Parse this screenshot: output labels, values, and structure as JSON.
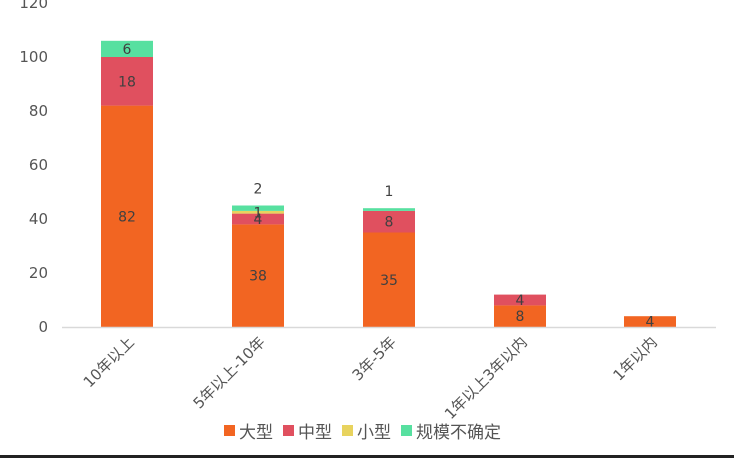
{
  "chart_data": {
    "type": "bar",
    "stacked": true,
    "categories": [
      "10年以上",
      "5年以上-10年",
      "3年-5年",
      "1年以上3年以内",
      "1年以内"
    ],
    "series": [
      {
        "name": "大型",
        "color": "#F26522",
        "values": [
          82,
          38,
          35,
          8,
          4
        ]
      },
      {
        "name": "中型",
        "color": "#E0505F",
        "values": [
          18,
          4,
          8,
          4,
          0
        ]
      },
      {
        "name": "小型",
        "color": "#E8D35E",
        "values": [
          0,
          1,
          0,
          0,
          0
        ]
      },
      {
        "name": "规模不确定",
        "color": "#57E0A0",
        "values": [
          6,
          2,
          1,
          0,
          0
        ]
      }
    ],
    "ylim": [
      0,
      120
    ],
    "yticks": [
      0,
      20,
      40,
      60,
      80,
      100,
      120
    ],
    "grid": false,
    "legend": "bottom",
    "title": "",
    "xlabel": "",
    "ylabel": ""
  }
}
